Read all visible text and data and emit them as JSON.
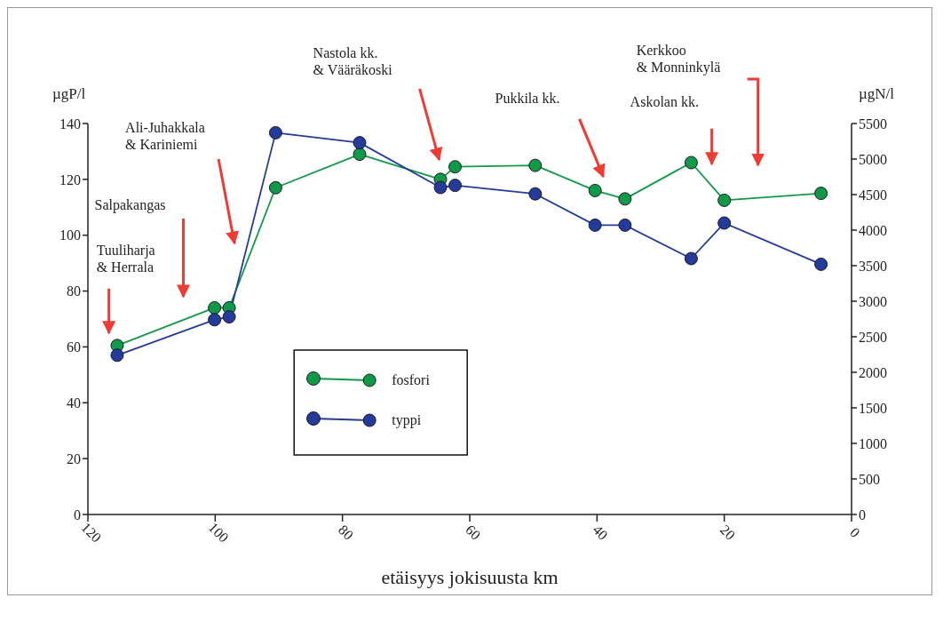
{
  "chart_data": {
    "type": "line",
    "xlabel": "etäisyys jokisuusta km",
    "ylabel": "µgP/l",
    "y2label": "µgN/l",
    "x": [
      115.4,
      100.1,
      97.8,
      90.5,
      77.3,
      64.6,
      62.3,
      49.7,
      40.3,
      35.6,
      25.2,
      20,
      4.8
    ],
    "series": [
      {
        "name": "fosfori",
        "color": "#109a48",
        "values": [
          60.5,
          74,
          74,
          117,
          129,
          120,
          124.5,
          125,
          116,
          113,
          126,
          112.5,
          115
        ]
      },
      {
        "name": "typpi",
        "color": "#253b9a",
        "axis": "y2",
        "values": [
          2240,
          2740,
          2780,
          5370,
          5230,
          4600,
          4630,
          4510,
          4070,
          4070,
          3600,
          4100,
          3520
        ]
      }
    ],
    "xlim": [
      120,
      0
    ],
    "xticks": [
      120,
      100,
      80,
      60,
      40,
      20,
      0
    ],
    "ylim": [
      0,
      140
    ],
    "yticks": [
      0,
      20,
      40,
      60,
      80,
      100,
      120,
      140
    ],
    "y2lim": [
      0,
      5500
    ],
    "y2ticks": [
      0,
      500,
      1000,
      1500,
      2000,
      2500,
      3000,
      3500,
      4000,
      4500,
      5000,
      5500
    ],
    "annotations": [
      "Tuuliharja\n& Herrala",
      "Salpakangas",
      "Ali-Juhakkala\n& Kariniemi",
      "Nastola kk.\n& Vääräkoski",
      "Pukkila kk.",
      "Askolan kk.",
      "Kerkkoo\n& Monninkylä"
    ],
    "legend": "bottom left",
    "marker": "circle",
    "line_style": "solid",
    "grid": false
  }
}
